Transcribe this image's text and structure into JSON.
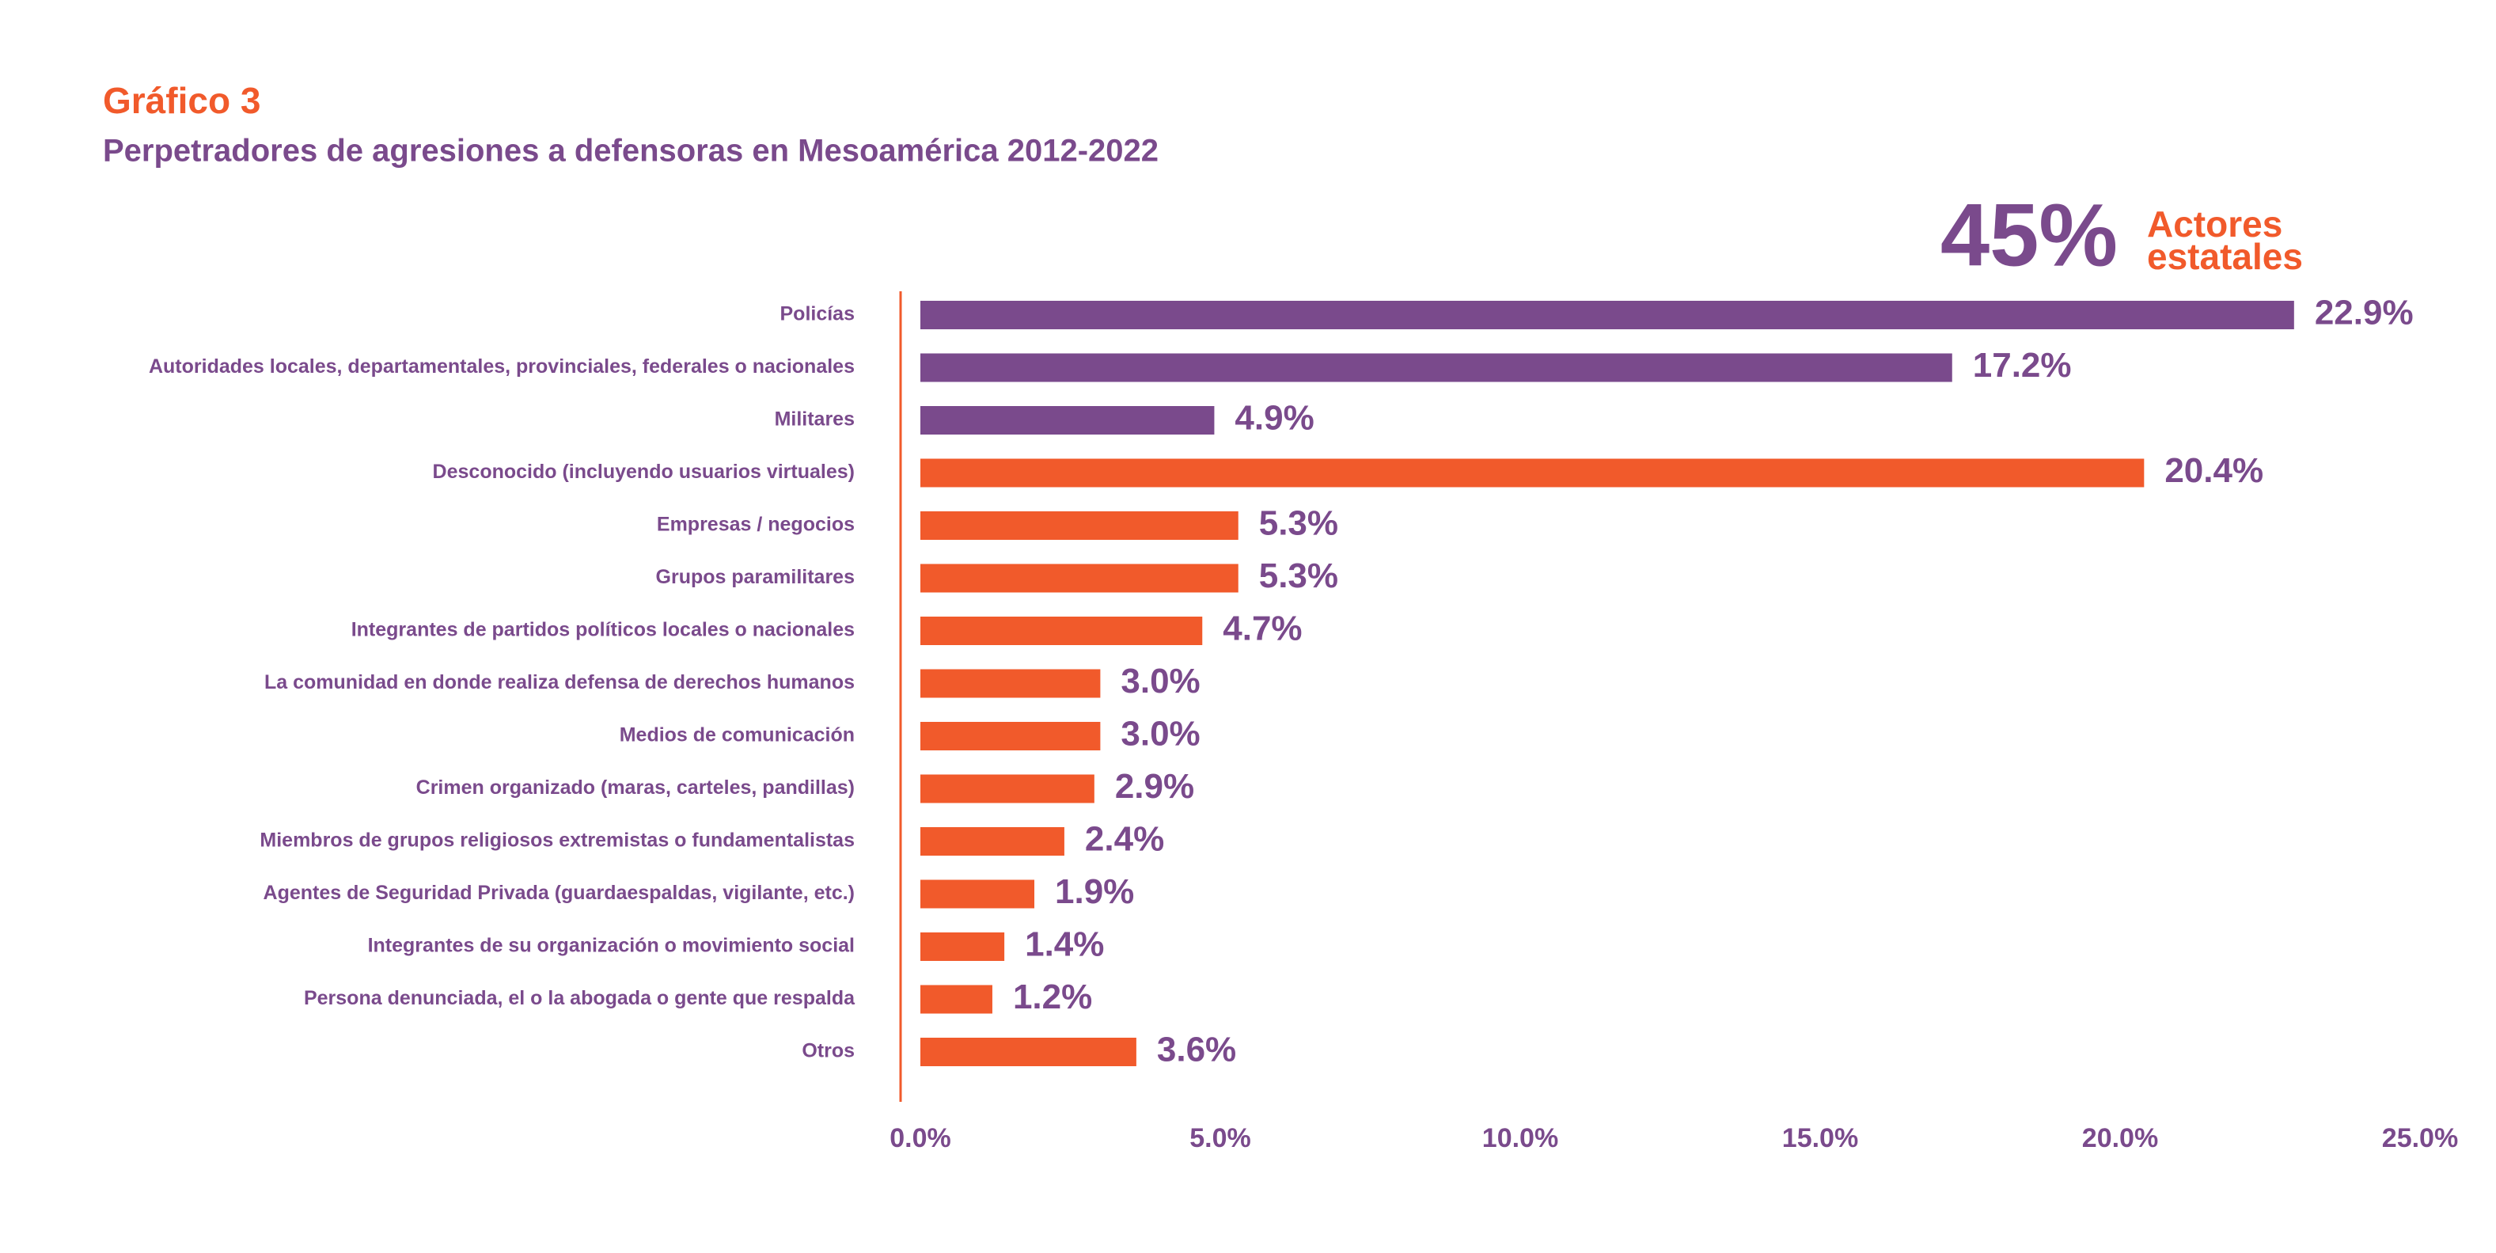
{
  "chart_data": {
    "type": "bar",
    "orientation": "horizontal",
    "title": "Gráfico 3",
    "subtitle": "Perpetradores de agresiones a defensoras en Mesoamérica 2012-2022",
    "highlight": "45%",
    "highlight_label": [
      "Actores",
      "estatales"
    ],
    "categories": [
      "Policías",
      "Autoridades locales, departamentales, provinciales, federales o nacionales",
      "Militares",
      "Desconocido (incluyendo usuarios virtuales)",
      "Empresas / negocios",
      "Grupos paramilitares",
      "Integrantes de partidos políticos locales o nacionales",
      "La comunidad en donde realiza defensa de derechos humanos",
      "Medios de comunicación",
      "Crimen organizado (maras, carteles, pandillas)",
      "Miembros de grupos religiosos extremistas o fundamentalistas",
      "Agentes de Seguridad Privada (guardaespaldas, vigilante, etc.)",
      "Integrantes de su organización o movimiento social",
      "Persona denunciada, el o la abogada o gente que respalda",
      "Otros"
    ],
    "values": [
      22.9,
      17.2,
      4.9,
      20.4,
      5.3,
      5.3,
      4.7,
      3.0,
      3.0,
      2.9,
      2.4,
      1.9,
      1.4,
      1.2,
      3.6
    ],
    "value_labels": [
      "22.9%",
      "17.2%",
      "4.9%",
      "20.4%",
      "5.3%",
      "5.3%",
      "4.7%",
      "3.0%",
      "3.0%",
      "2.9%",
      "2.4%",
      "1.9%",
      "1.4%",
      "1.2%",
      "3.6%"
    ],
    "colors": [
      "#7a4a8c",
      "#7a4a8c",
      "#7a4a8c",
      "#f15a2b",
      "#f15a2b",
      "#f15a2b",
      "#f15a2b",
      "#f15a2b",
      "#f15a2b",
      "#f15a2b",
      "#f15a2b",
      "#f15a2b",
      "#f15a2b",
      "#f15a2b",
      "#f15a2b"
    ],
    "xlim": [
      0,
      25
    ],
    "xticks": [
      {
        "value": 0,
        "label": "0.0%"
      },
      {
        "value": 5,
        "label": "5.0%"
      },
      {
        "value": 10,
        "label": "10.0%"
      },
      {
        "value": 15,
        "label": "15.0%"
      },
      {
        "value": 20,
        "label": "20.0%"
      },
      {
        "value": 25,
        "label": "25.0%"
      }
    ],
    "grid": false
  }
}
